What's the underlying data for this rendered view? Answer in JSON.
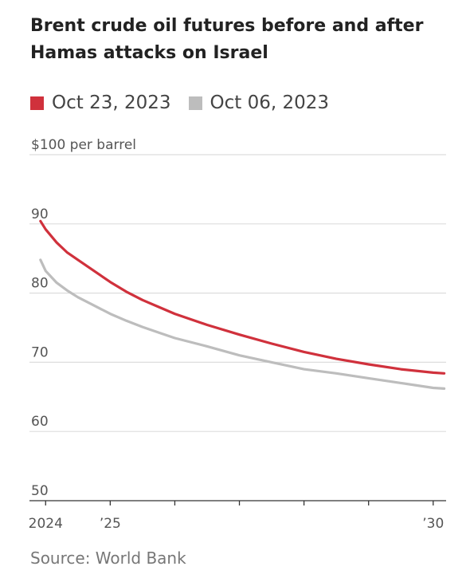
{
  "title": "Brent crude oil futures before and after Hamas attacks on Israel",
  "source": "Source: World Bank",
  "colors": {
    "oct23": "#d0313c",
    "oct06": "#bdbdbd",
    "grid": "#dddddd",
    "axis": "#333333",
    "label": "#555555"
  },
  "chart_data": {
    "type": "line",
    "title": "Brent crude oil futures before and after Hamas attacks on Israel",
    "ylabel": "$100 per barrel",
    "ylim": [
      50,
      100
    ],
    "yticks": [
      50,
      60,
      70,
      80,
      90,
      100
    ],
    "ytick_labels": [
      "50",
      "60",
      "70",
      "80",
      "90",
      "$100 per barrel"
    ],
    "xlim": [
      2023.75,
      2030.2
    ],
    "xticks": [
      2024,
      2025,
      2026,
      2027,
      2028,
      2029,
      2030
    ],
    "xtick_labels": [
      "2024",
      "’25",
      "",
      "",
      "",
      "",
      "’30"
    ],
    "grid": true,
    "legend_position": "top-left",
    "series": [
      {
        "name": "Oct 23, 2023",
        "color": "#d0313c",
        "x": [
          2023.92,
          2024.0,
          2024.17,
          2024.33,
          2024.5,
          2024.75,
          2025.0,
          2025.25,
          2025.5,
          2025.75,
          2026.0,
          2026.5,
          2027.0,
          2027.5,
          2028.0,
          2028.5,
          2029.0,
          2029.5,
          2030.0,
          2030.17
        ],
        "values": [
          90.4,
          89.2,
          87.3,
          85.9,
          84.8,
          83.2,
          81.6,
          80.2,
          79.0,
          78.0,
          77.0,
          75.4,
          74.0,
          72.7,
          71.5,
          70.5,
          69.7,
          69.0,
          68.5,
          68.4
        ]
      },
      {
        "name": "Oct 06, 2023",
        "color": "#bdbdbd",
        "x": [
          2023.92,
          2024.0,
          2024.17,
          2024.33,
          2024.5,
          2024.75,
          2025.0,
          2025.25,
          2025.5,
          2025.75,
          2026.0,
          2026.5,
          2027.0,
          2027.5,
          2028.0,
          2028.5,
          2029.0,
          2029.5,
          2030.0,
          2030.17
        ],
        "values": [
          84.8,
          83.2,
          81.5,
          80.4,
          79.4,
          78.2,
          77.0,
          76.0,
          75.1,
          74.3,
          73.5,
          72.3,
          71.0,
          70.0,
          69.0,
          68.4,
          67.7,
          67.0,
          66.3,
          66.2
        ]
      }
    ]
  }
}
